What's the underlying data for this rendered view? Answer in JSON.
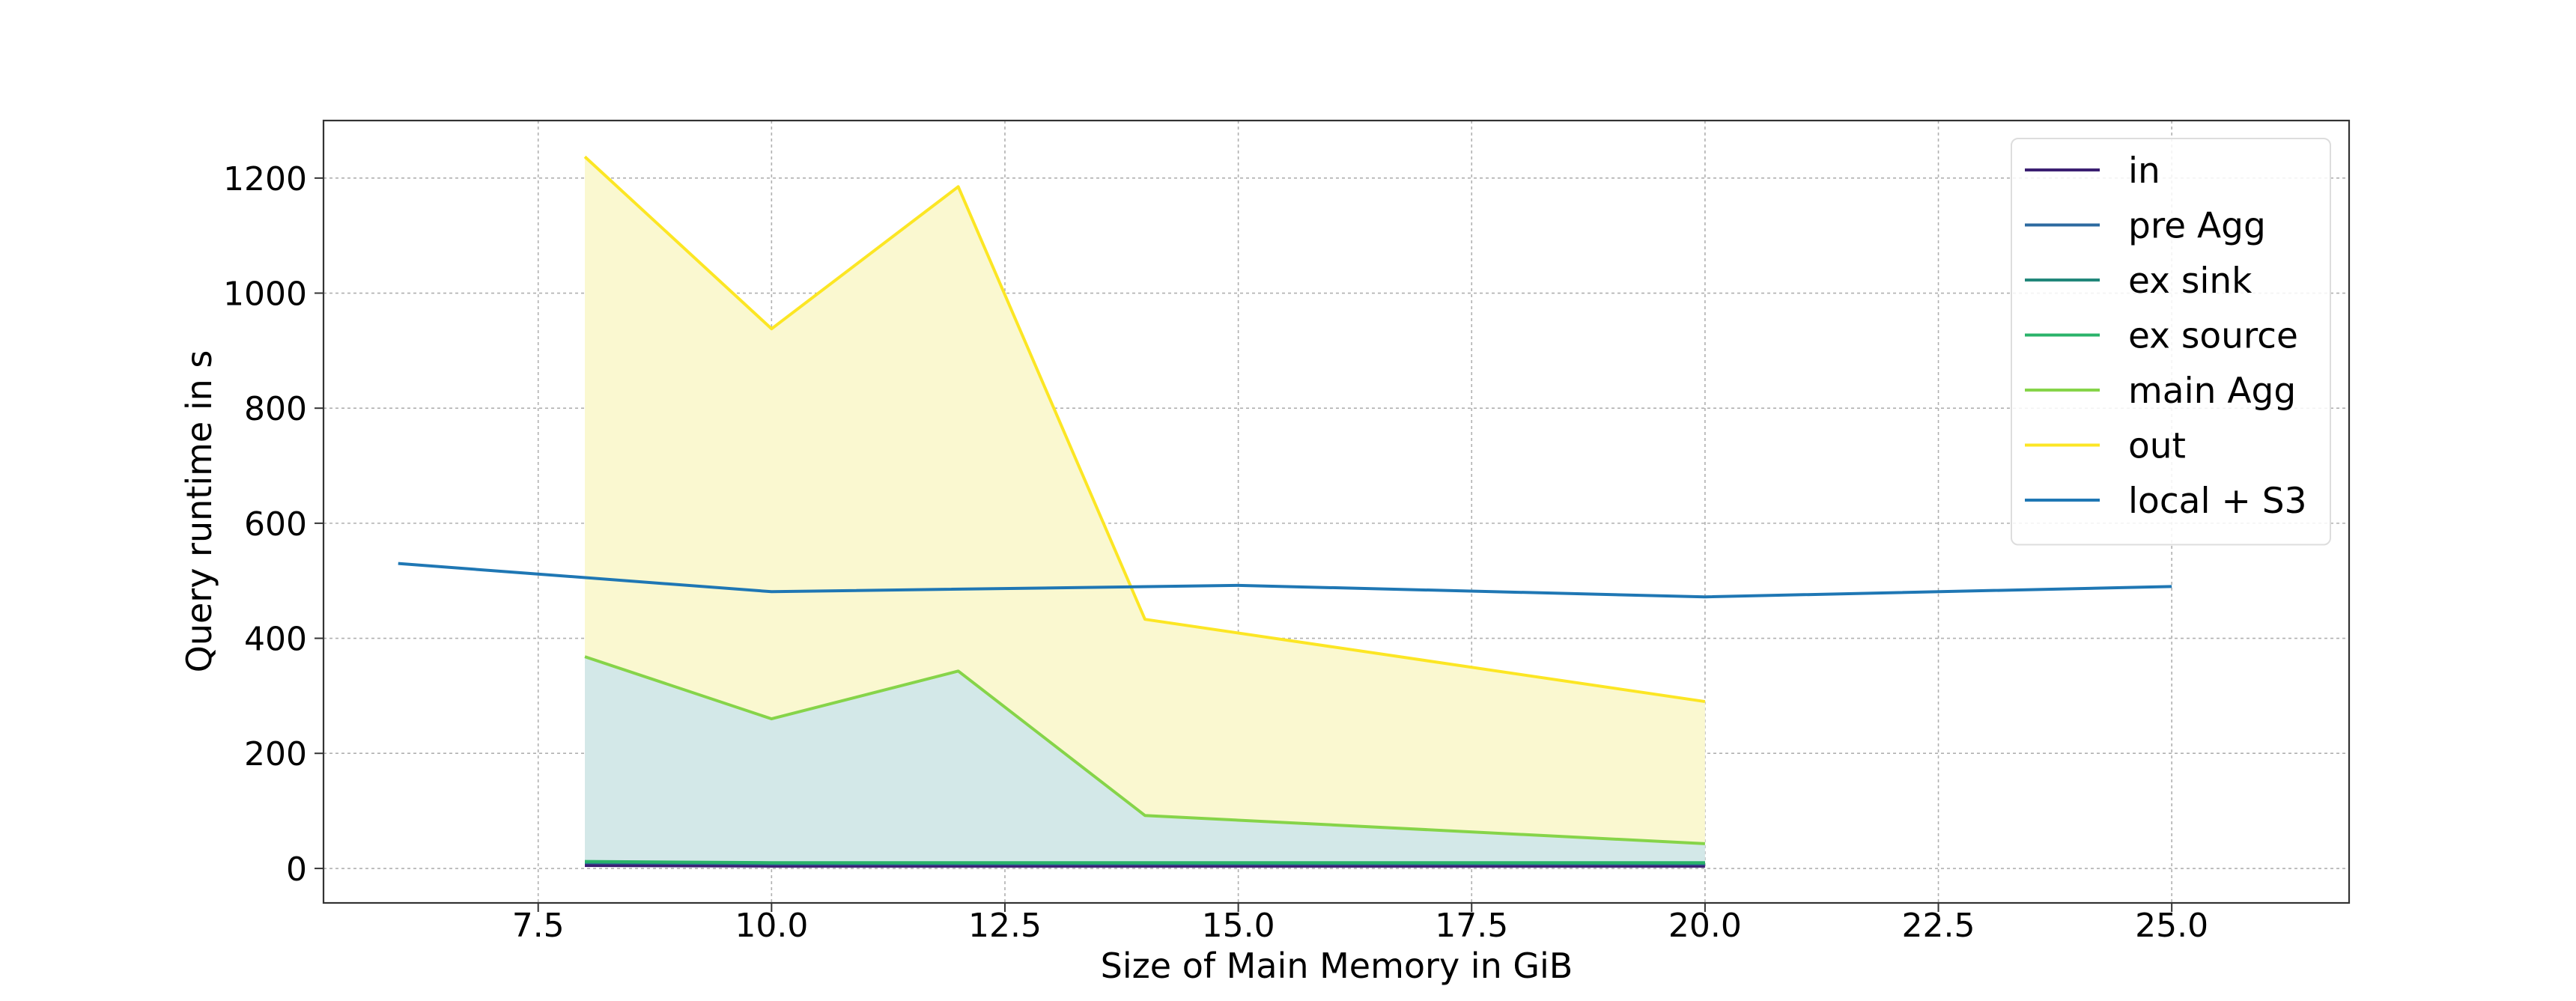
{
  "chart_data": {
    "type": "area",
    "title": "",
    "xlabel": "Size of Main Memory in GiB",
    "ylabel": "Query runtime in s",
    "xlim": [
      5.2,
      26.9
    ],
    "ylim": [
      -60,
      1300
    ],
    "xticks": [
      7.5,
      10.0,
      12.5,
      15.0,
      17.5,
      20.0,
      22.5,
      25.0
    ],
    "xtick_labels": [
      "7.5",
      "10.0",
      "12.5",
      "15.0",
      "17.5",
      "20.0",
      "22.5",
      "25.0"
    ],
    "yticks": [
      0,
      200,
      400,
      600,
      800,
      1000,
      1200
    ],
    "ytick_labels": [
      "0",
      "200",
      "400",
      "600",
      "800",
      "1000",
      "1200"
    ],
    "grid": true,
    "legend_position": "top-right",
    "stacked_x": [
      8,
      10,
      12,
      14,
      20
    ],
    "series": [
      {
        "name": "in",
        "color": "#3b1f72",
        "values": [
          5,
          4,
          4,
          4,
          4
        ]
      },
      {
        "name": "pre Agg",
        "color": "#2c6aa0",
        "values": [
          10,
          8,
          8,
          8,
          8
        ]
      },
      {
        "name": "ex sink",
        "color": "#21877a",
        "values": [
          11,
          9,
          9,
          9,
          9
        ]
      },
      {
        "name": "ex source",
        "color": "#2ab36a",
        "values": [
          12,
          10,
          10,
          10,
          10
        ]
      },
      {
        "name": "main Agg",
        "color": "#86d449",
        "values": [
          368,
          260,
          343,
          92,
          43
        ]
      },
      {
        "name": "out",
        "color": "#fce624",
        "values": [
          1237,
          938,
          1185,
          433,
          290
        ]
      }
    ],
    "fills": [
      {
        "between": [
          "pre Agg",
          "main Agg"
        ],
        "color": "#d3e8e8"
      },
      {
        "between": [
          "main Agg",
          "out"
        ],
        "color": "#faf8d0"
      }
    ],
    "reference_series": {
      "name": "local + S3",
      "color": "#1f77b4",
      "x": [
        6,
        10,
        15,
        20,
        25
      ],
      "values": [
        530,
        481,
        492,
        472,
        490
      ]
    }
  }
}
